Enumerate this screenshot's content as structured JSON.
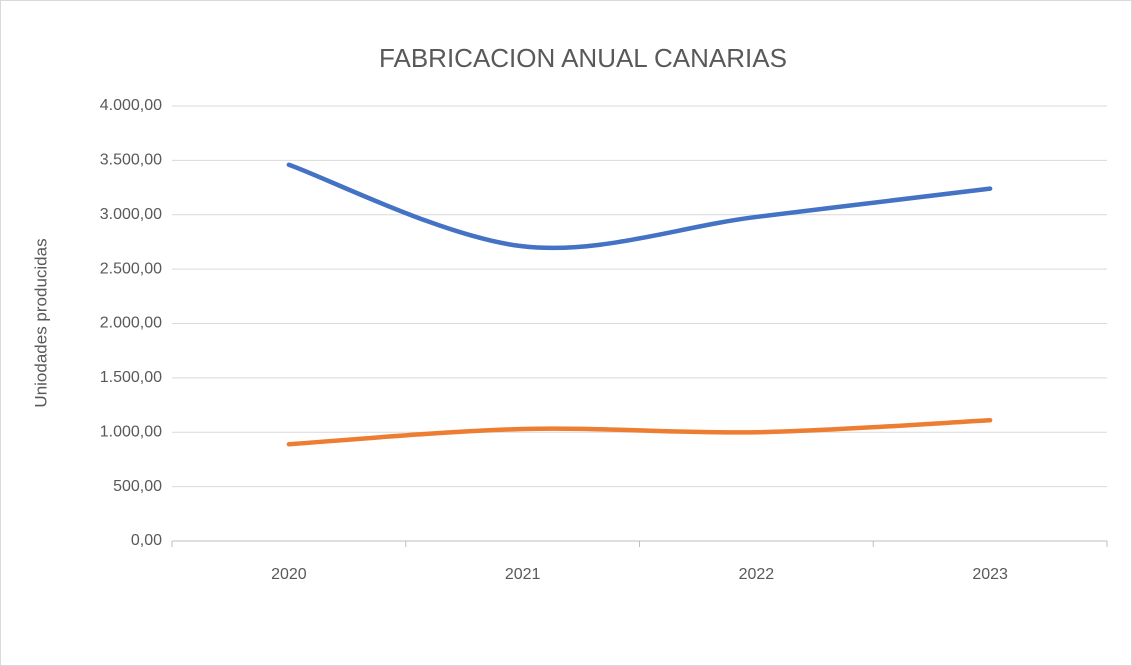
{
  "chart_data": {
    "type": "line",
    "title": "FABRICACION ANUAL CANARIAS",
    "y_label": "Uniodades producidas",
    "categories": [
      "2020",
      "2021",
      "2022",
      "2023"
    ],
    "series": [
      {
        "color": "#4472c4",
        "values": [
          3460,
          2710,
          2980,
          3240
        ]
      },
      {
        "color": "#ed7d31",
        "values": [
          890,
          1030,
          1000,
          1110
        ]
      }
    ],
    "ylim": [
      0,
      4000
    ],
    "yticks": [
      {
        "value": 0,
        "label": "0,00"
      },
      {
        "value": 500,
        "label": "500,00"
      },
      {
        "value": 1000,
        "label": "1.000,00"
      },
      {
        "value": 1500,
        "label": "1.500,00"
      },
      {
        "value": 2000,
        "label": "2.000,00"
      },
      {
        "value": 2500,
        "label": "2.500,00"
      },
      {
        "value": 3000,
        "label": "3.000,00"
      },
      {
        "value": 3500,
        "label": "3.500,00"
      },
      {
        "value": 4000,
        "label": "4.000,00"
      }
    ],
    "grid": true,
    "smooth": true
  }
}
